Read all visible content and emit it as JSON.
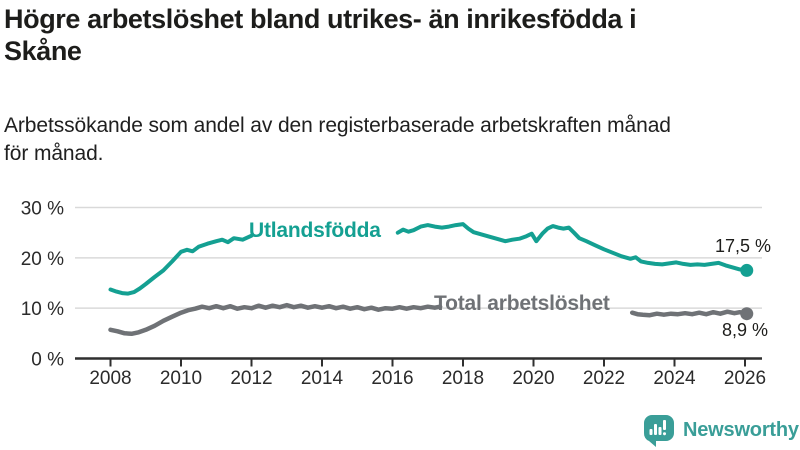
{
  "header": {
    "title": "Högre arbetslöshet bland utrikes- än inrikesfödda i\nSkåne",
    "subtitle": "Arbetssökande som andel av den registerbaserade arbetskraften månad\nför månad."
  },
  "branding": {
    "name": "Newsworthy",
    "icon": "speech-bubble-bar-chart-icon",
    "color": "#3a9e98"
  },
  "colors": {
    "axis": "#2f2f2f",
    "grid": "#d9d9d9",
    "text": "#1d1d1b",
    "foreign_series": "#14a092",
    "total_series": "#6f7276"
  },
  "chart_data": {
    "type": "line",
    "title": "",
    "xlabel": "",
    "ylabel": "",
    "unit": "%",
    "ylim": [
      0,
      30
    ],
    "x_range": [
      2007.85,
      2026.45
    ],
    "grid": "horizontal",
    "legend_position": "inline-labels",
    "yticks": [
      {
        "value": 0,
        "label": "0 %"
      },
      {
        "value": 10,
        "label": "10 %"
      },
      {
        "value": 20,
        "label": "20 %"
      },
      {
        "value": 30,
        "label": "30 %"
      }
    ],
    "xticks": [
      {
        "value": 2008,
        "label": "2008"
      },
      {
        "value": 2010,
        "label": "2010"
      },
      {
        "value": 2012,
        "label": "2012"
      },
      {
        "value": 2014,
        "label": "2014"
      },
      {
        "value": 2016,
        "label": "2016"
      },
      {
        "value": 2018,
        "label": "2018"
      },
      {
        "value": 2020,
        "label": "2020"
      },
      {
        "value": 2022,
        "label": "2022"
      },
      {
        "value": 2024,
        "label": "2024"
      },
      {
        "value": 2026,
        "label": "2026"
      }
    ],
    "series": [
      {
        "name": "Utlandsfödda",
        "color": "#14a092",
        "end_label": "17,5 %",
        "end_value": 17.5,
        "points": [
          [
            2008.0,
            13.7
          ],
          [
            2008.17,
            13.3
          ],
          [
            2008.33,
            13.0
          ],
          [
            2008.5,
            12.9
          ],
          [
            2008.67,
            13.2
          ],
          [
            2008.83,
            13.9
          ],
          [
            2009.0,
            14.8
          ],
          [
            2009.25,
            16.2
          ],
          [
            2009.5,
            17.5
          ],
          [
            2009.75,
            19.3
          ],
          [
            2010.0,
            21.2
          ],
          [
            2010.17,
            21.6
          ],
          [
            2010.33,
            21.3
          ],
          [
            2010.5,
            22.2
          ],
          [
            2010.75,
            22.8
          ],
          [
            2011.0,
            23.3
          ],
          [
            2011.17,
            23.6
          ],
          [
            2011.33,
            23.1
          ],
          [
            2011.5,
            23.9
          ],
          [
            2011.75,
            23.6
          ],
          [
            2012.0,
            24.4
          ],
          null,
          [
            2016.15,
            25.0
          ],
          [
            2016.3,
            25.6
          ],
          [
            2016.45,
            25.2
          ],
          [
            2016.6,
            25.5
          ],
          [
            2016.8,
            26.2
          ],
          [
            2017.0,
            26.5
          ],
          [
            2017.2,
            26.2
          ],
          [
            2017.4,
            26.0
          ],
          [
            2017.6,
            26.2
          ],
          [
            2017.8,
            26.5
          ],
          [
            2018.0,
            26.7
          ],
          [
            2018.15,
            25.8
          ],
          [
            2018.3,
            25.1
          ],
          [
            2018.5,
            24.7
          ],
          [
            2018.75,
            24.2
          ],
          [
            2019.0,
            23.7
          ],
          [
            2019.2,
            23.3
          ],
          [
            2019.4,
            23.6
          ],
          [
            2019.6,
            23.8
          ],
          [
            2019.8,
            24.3
          ],
          [
            2019.95,
            24.8
          ],
          [
            2020.08,
            23.3
          ],
          [
            2020.25,
            24.8
          ],
          [
            2020.4,
            25.8
          ],
          [
            2020.55,
            26.3
          ],
          [
            2020.7,
            26.0
          ],
          [
            2020.85,
            25.8
          ],
          [
            2021.0,
            26.0
          ],
          [
            2021.15,
            25.0
          ],
          [
            2021.3,
            23.9
          ],
          [
            2021.5,
            23.3
          ],
          [
            2021.75,
            22.5
          ],
          [
            2022.0,
            21.7
          ],
          [
            2022.25,
            21.0
          ],
          [
            2022.5,
            20.3
          ],
          [
            2022.75,
            19.8
          ],
          [
            2022.9,
            20.1
          ],
          [
            2023.05,
            19.3
          ],
          [
            2023.25,
            19.0
          ],
          [
            2023.45,
            18.8
          ],
          [
            2023.65,
            18.7
          ],
          [
            2023.85,
            18.9
          ],
          [
            2024.05,
            19.1
          ],
          [
            2024.25,
            18.8
          ],
          [
            2024.45,
            18.6
          ],
          [
            2024.65,
            18.7
          ],
          [
            2024.85,
            18.6
          ],
          [
            2025.05,
            18.8
          ],
          [
            2025.25,
            19.0
          ],
          [
            2025.45,
            18.5
          ],
          [
            2025.65,
            18.1
          ],
          [
            2025.85,
            17.7
          ],
          [
            2026.05,
            17.5
          ]
        ]
      },
      {
        "name": "Total arbetslöshet",
        "color": "#6f7276",
        "end_label": "8,9 %",
        "end_value": 8.9,
        "points": [
          [
            2008.0,
            5.7
          ],
          [
            2008.2,
            5.4
          ],
          [
            2008.4,
            5.0
          ],
          [
            2008.6,
            4.9
          ],
          [
            2008.8,
            5.2
          ],
          [
            2009.0,
            5.7
          ],
          [
            2009.25,
            6.5
          ],
          [
            2009.5,
            7.5
          ],
          [
            2009.75,
            8.3
          ],
          [
            2010.0,
            9.1
          ],
          [
            2010.2,
            9.6
          ],
          [
            2010.4,
            9.9
          ],
          [
            2010.6,
            10.3
          ],
          [
            2010.8,
            10.0
          ],
          [
            2011.0,
            10.4
          ],
          [
            2011.2,
            10.0
          ],
          [
            2011.4,
            10.4
          ],
          [
            2011.6,
            9.9
          ],
          [
            2011.8,
            10.2
          ],
          [
            2012.0,
            10.0
          ],
          [
            2012.2,
            10.5
          ],
          [
            2012.4,
            10.1
          ],
          [
            2012.6,
            10.5
          ],
          [
            2012.8,
            10.2
          ],
          [
            2013.0,
            10.6
          ],
          [
            2013.2,
            10.2
          ],
          [
            2013.4,
            10.5
          ],
          [
            2013.6,
            10.1
          ],
          [
            2013.8,
            10.4
          ],
          [
            2014.0,
            10.1
          ],
          [
            2014.2,
            10.4
          ],
          [
            2014.4,
            10.0
          ],
          [
            2014.6,
            10.3
          ],
          [
            2014.8,
            9.9
          ],
          [
            2015.0,
            10.2
          ],
          [
            2015.2,
            9.8
          ],
          [
            2015.4,
            10.1
          ],
          [
            2015.6,
            9.7
          ],
          [
            2015.8,
            10.0
          ],
          [
            2016.0,
            9.9
          ],
          [
            2016.2,
            10.2
          ],
          [
            2016.4,
            9.9
          ],
          [
            2016.6,
            10.2
          ],
          [
            2016.8,
            10.0
          ],
          [
            2017.0,
            10.3
          ],
          [
            2017.2,
            10.1
          ],
          [
            2017.35,
            10.3
          ],
          null,
          [
            2022.8,
            9.1
          ],
          [
            2022.95,
            8.8
          ],
          [
            2023.1,
            8.7
          ],
          [
            2023.3,
            8.6
          ],
          [
            2023.5,
            8.9
          ],
          [
            2023.7,
            8.7
          ],
          [
            2023.9,
            8.9
          ],
          [
            2024.1,
            8.8
          ],
          [
            2024.3,
            9.0
          ],
          [
            2024.5,
            8.8
          ],
          [
            2024.7,
            9.1
          ],
          [
            2024.9,
            8.8
          ],
          [
            2025.1,
            9.2
          ],
          [
            2025.3,
            8.9
          ],
          [
            2025.5,
            9.3
          ],
          [
            2025.7,
            9.0
          ],
          [
            2025.85,
            9.2
          ],
          [
            2026.05,
            8.9
          ]
        ]
      }
    ]
  }
}
